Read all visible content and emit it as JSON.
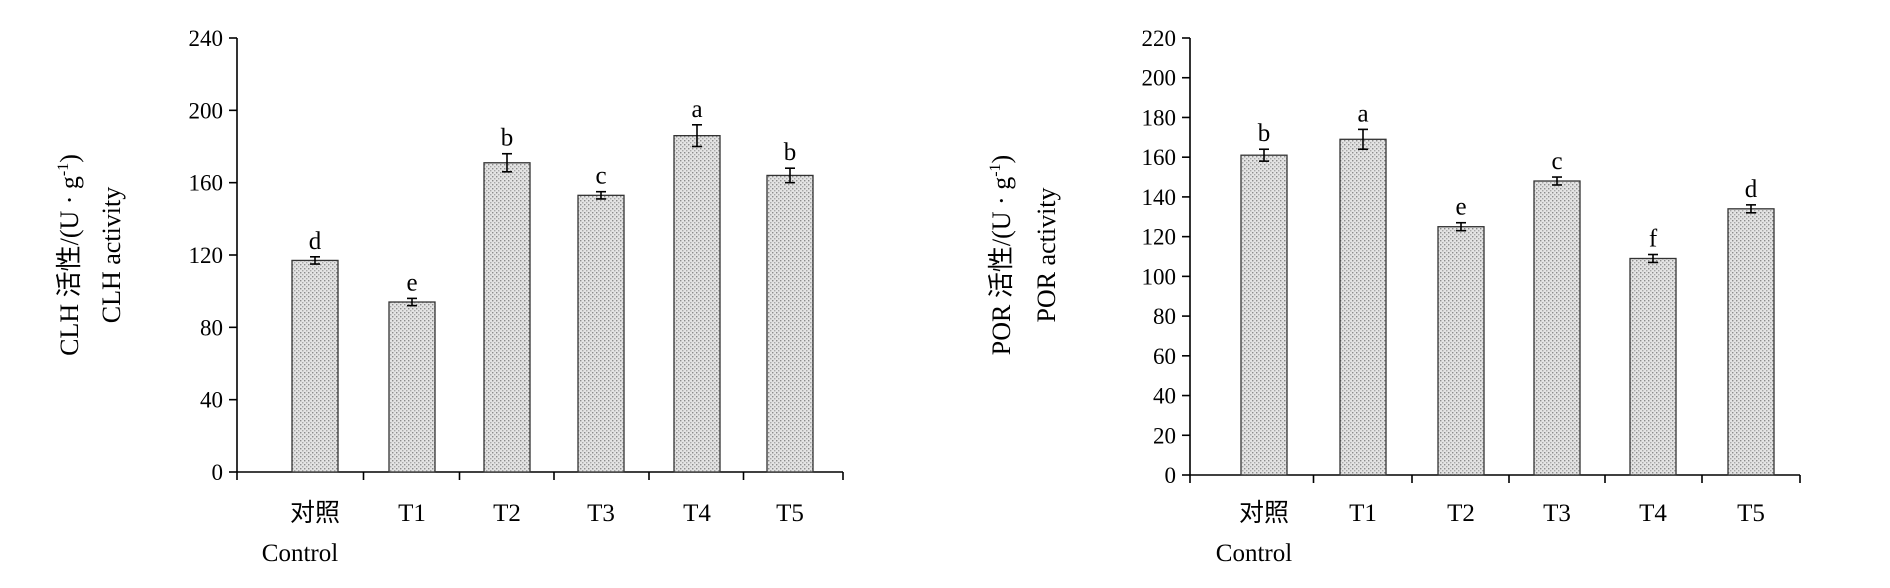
{
  "chart_data": [
    {
      "type": "bar",
      "categories": [
        "对照",
        "T1",
        "T2",
        "T3",
        "T4",
        "T5"
      ],
      "categories_sub": [
        "Control",
        "",
        "",
        "",
        "",
        ""
      ],
      "values": [
        117,
        94,
        171,
        153,
        186,
        164
      ],
      "errors": [
        2,
        2,
        5,
        2,
        6,
        4
      ],
      "significance": [
        "d",
        "e",
        "b",
        "c",
        "a",
        "b"
      ],
      "ylim": [
        0,
        240
      ],
      "yticks": [
        0,
        40,
        80,
        120,
        160,
        200,
        240
      ],
      "ylabel_parts": [
        "CLH 活性/(U · g",
        "-1",
        ")"
      ],
      "ylabel_en": "CLH activity",
      "xlabel": "",
      "title": ""
    },
    {
      "type": "bar",
      "categories": [
        "对照",
        "T1",
        "T2",
        "T3",
        "T4",
        "T5"
      ],
      "categories_sub": [
        "Control",
        "",
        "",
        "",
        "",
        ""
      ],
      "values": [
        161,
        169,
        125,
        148,
        109,
        134
      ],
      "errors": [
        3,
        5,
        2,
        2,
        2,
        2
      ],
      "significance": [
        "b",
        "a",
        "e",
        "c",
        "f",
        "d"
      ],
      "ylim": [
        0,
        220
      ],
      "yticks": [
        0,
        20,
        40,
        60,
        80,
        100,
        120,
        140,
        160,
        180,
        200,
        220
      ],
      "ylabel_parts": [
        "POR 活性/(U · g",
        "-1",
        ")"
      ],
      "ylabel_en": "POR activity",
      "xlabel": "",
      "title": ""
    }
  ],
  "colors": {
    "bar_fill": "#d9d9d9",
    "bar_stroke": "#333333",
    "axis": "#000000"
  }
}
